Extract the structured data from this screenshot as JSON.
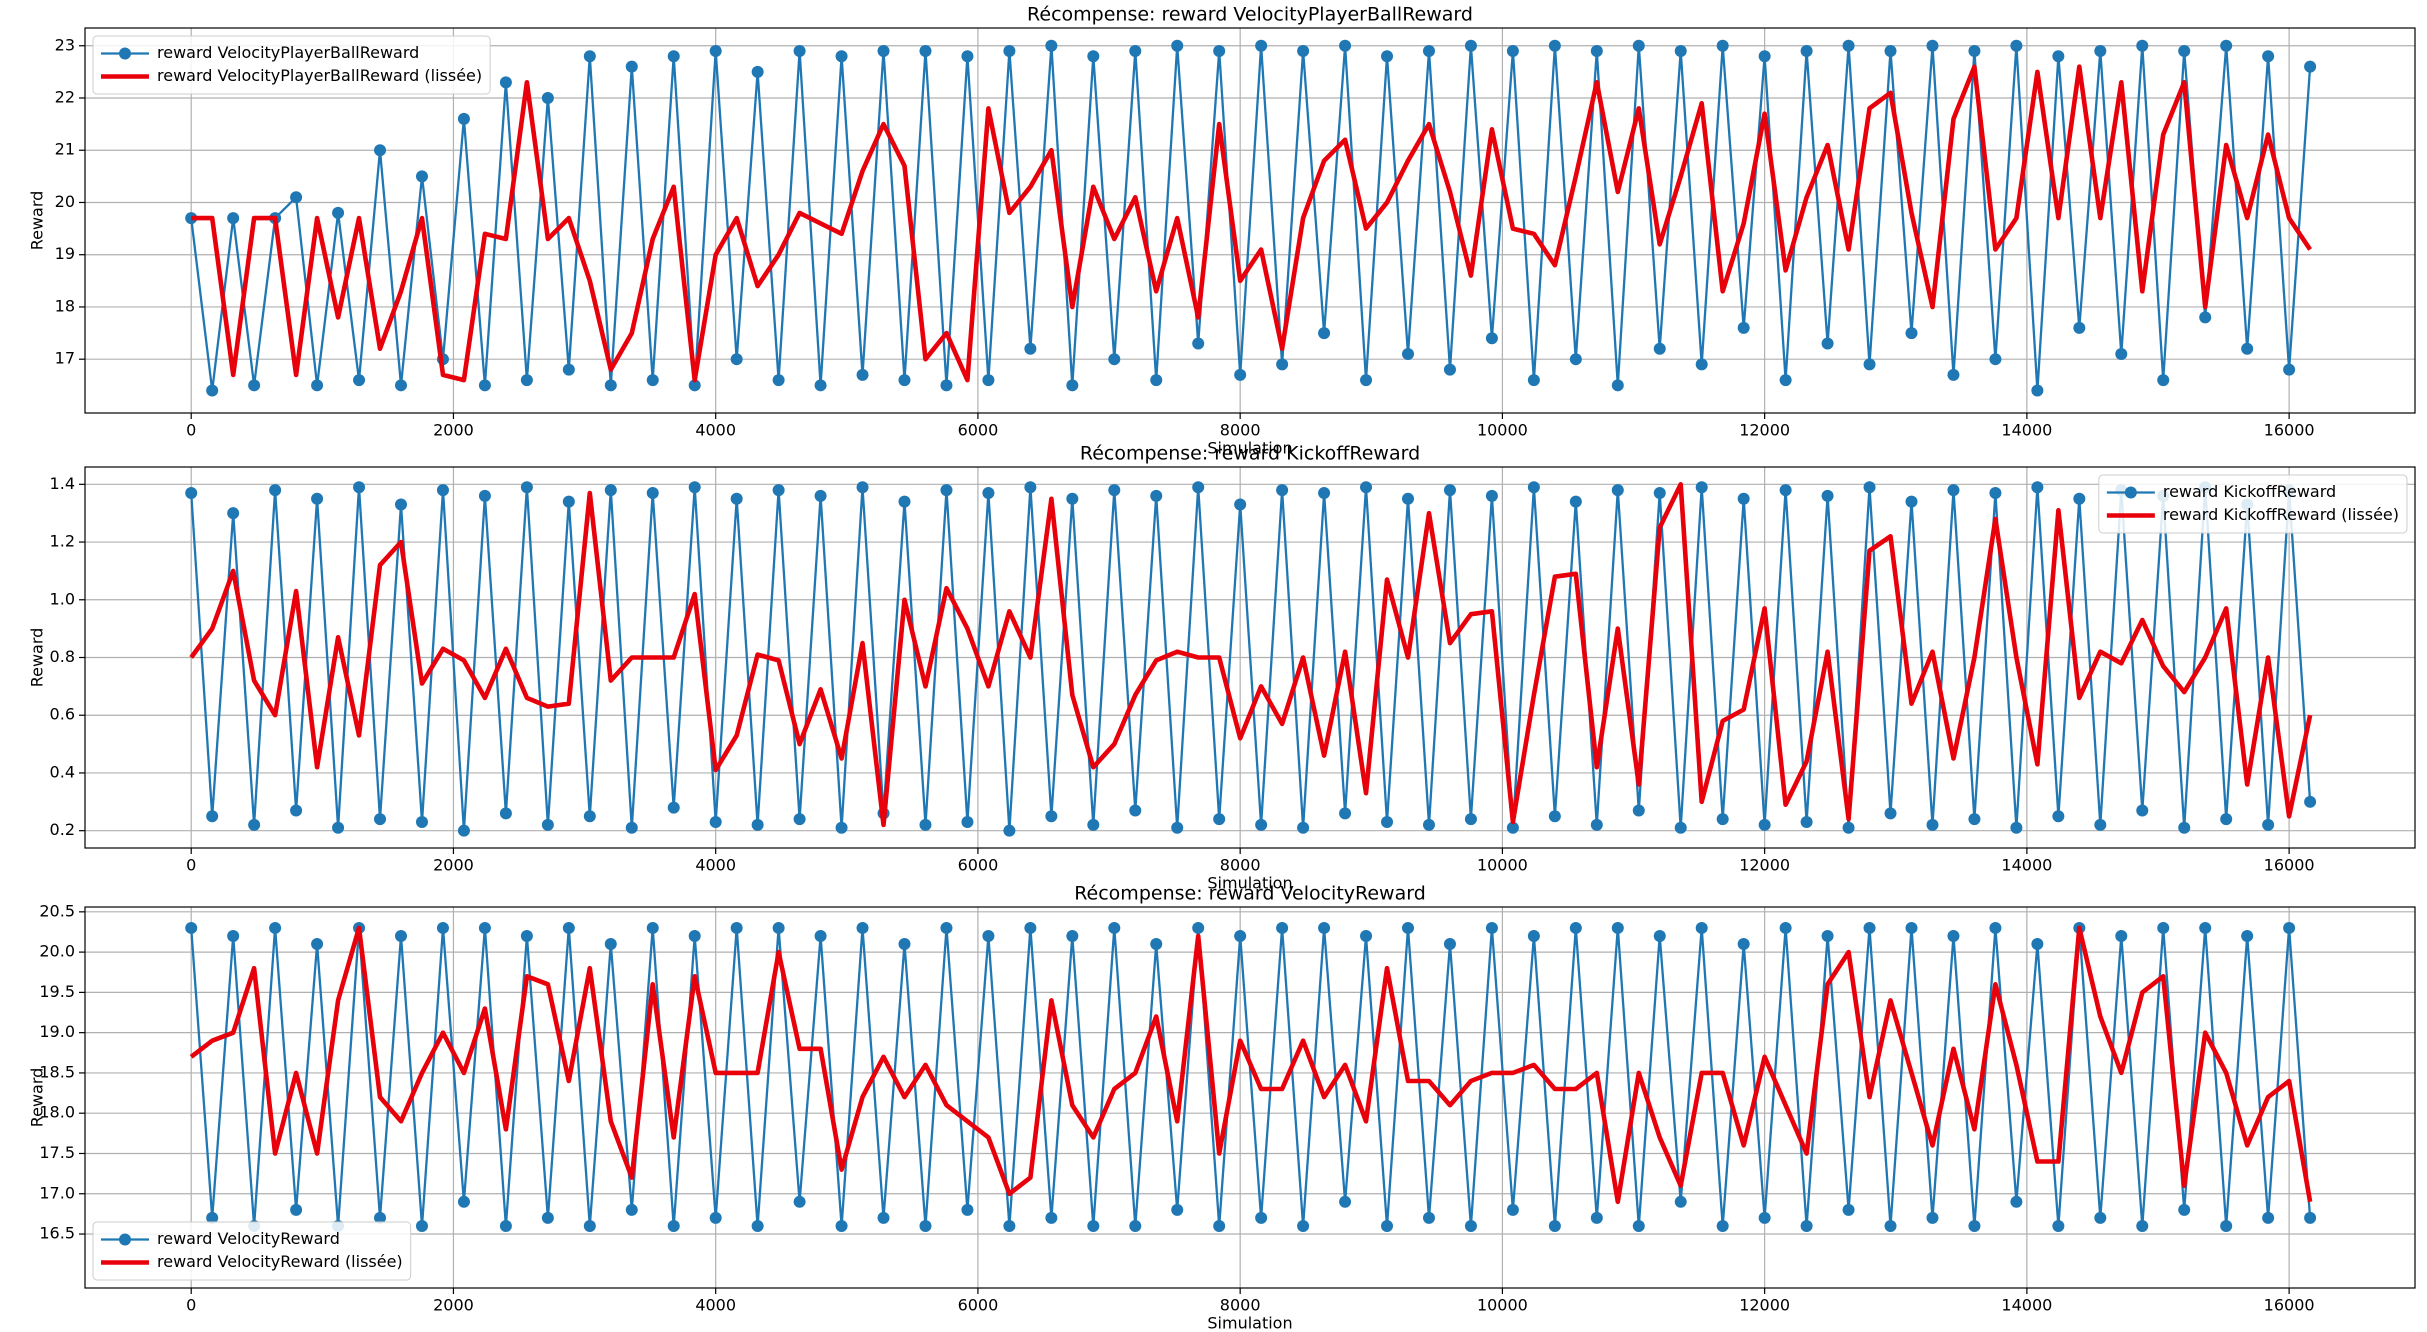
{
  "chart_data": [
    {
      "type": "line",
      "title": "Récompense: reward VelocityPlayerBallReward",
      "xlabel": "Simulation",
      "ylabel": "Reward",
      "xlim": [
        -810,
        16960
      ],
      "xticks": [
        0,
        2000,
        4000,
        6000,
        8000,
        10000,
        12000,
        14000,
        16000
      ],
      "ylim": [
        15.97,
        23.34
      ],
      "yticks": [
        17,
        18,
        19,
        20,
        21,
        22,
        23
      ],
      "grid": true,
      "legend": "upper left",
      "x": [
        0,
        160,
        320,
        480,
        640,
        800,
        960,
        1120,
        1280,
        1440,
        1600,
        1760,
        1920,
        2080,
        2240,
        2400,
        2560,
        2720,
        2880,
        3040,
        3200,
        3360,
        3520,
        3680,
        3840,
        4000,
        4160,
        4320,
        4480,
        4640,
        4800,
        4960,
        5120,
        5280,
        5440,
        5600,
        5760,
        5920,
        6080,
        6240,
        6400,
        6560,
        6720,
        6880,
        7040,
        7200,
        7360,
        7520,
        7680,
        7840,
        8000,
        8160,
        8320,
        8480,
        8640,
        8800,
        8960,
        9120,
        9280,
        9440,
        9600,
        9760,
        9920,
        10080,
        10240,
        10400,
        10560,
        10720,
        10880,
        11040,
        11200,
        11360,
        11520,
        11680,
        11840,
        12000,
        12160,
        12320,
        12480,
        12640,
        12800,
        12960,
        13120,
        13280,
        13440,
        13600,
        13760,
        13920,
        14080,
        14240,
        14400,
        14560,
        14720,
        14880,
        15040,
        15200,
        15360,
        15520,
        15680,
        15840,
        16000,
        16160
      ],
      "series": [
        {
          "name": "reward VelocityPlayerBallReward",
          "color": "#1f77b4",
          "marker": "o",
          "values": [
            19.7,
            16.4,
            19.7,
            16.5,
            19.7,
            20.1,
            16.5,
            19.8,
            16.6,
            21.0,
            16.5,
            20.5,
            17.0,
            21.6,
            16.5,
            22.3,
            16.6,
            22.0,
            16.8,
            22.8,
            16.5,
            22.6,
            16.6,
            22.8,
            16.5,
            22.9,
            17.0,
            22.5,
            16.6,
            22.9,
            16.5,
            22.8,
            16.7,
            22.9,
            16.6,
            22.9,
            16.5,
            22.8,
            16.6,
            22.9,
            17.2,
            23.0,
            16.5,
            22.8,
            17.0,
            22.9,
            16.6,
            23.0,
            17.3,
            22.9,
            16.7,
            23.0,
            16.9,
            22.9,
            17.5,
            23.0,
            16.6,
            22.8,
            17.1,
            22.9,
            16.8,
            23.0,
            17.4,
            22.9,
            16.6,
            23.0,
            17.0,
            22.9,
            16.5,
            23.0,
            17.2,
            22.9,
            16.9,
            23.0,
            17.6,
            22.8,
            16.6,
            22.9,
            17.3,
            23.0,
            16.9,
            22.9,
            17.5,
            23.0,
            16.7,
            22.9,
            17.0,
            23.0,
            16.4,
            22.8,
            17.6,
            22.9,
            17.1,
            23.0,
            16.6,
            22.9,
            17.8,
            23.0,
            17.2,
            22.8,
            16.8,
            22.6
          ]
        },
        {
          "name": "reward VelocityPlayerBallReward (lissée)",
          "color": "#e8000b",
          "values": [
            19.7,
            19.7,
            16.7,
            19.7,
            19.7,
            16.7,
            19.7,
            17.8,
            19.7,
            17.2,
            18.3,
            19.7,
            16.7,
            16.6,
            19.4,
            19.3,
            22.3,
            19.3,
            19.7,
            18.5,
            16.8,
            17.5,
            19.3,
            20.3,
            16.6,
            19.0,
            19.7,
            18.4,
            19.0,
            19.8,
            19.6,
            19.4,
            20.6,
            21.5,
            20.7,
            17.0,
            17.5,
            16.6,
            21.8,
            19.8,
            20.3,
            21.0,
            18.0,
            20.3,
            19.3,
            20.1,
            18.3,
            19.7,
            17.8,
            21.5,
            18.5,
            19.1,
            17.2,
            19.7,
            20.8,
            21.2,
            19.5,
            20.0,
            20.8,
            21.5,
            20.2,
            18.6,
            21.4,
            19.5,
            19.4,
            18.8,
            20.5,
            22.3,
            20.2,
            21.8,
            19.2,
            20.5,
            21.9,
            18.3,
            19.6,
            21.7,
            18.7,
            20.1,
            21.1,
            19.1,
            21.8,
            22.1,
            19.8,
            18.0,
            21.6,
            22.6,
            19.1,
            19.7,
            22.5,
            19.7,
            22.6,
            19.7,
            22.3,
            18.3,
            21.3,
            22.3,
            18.0,
            21.1,
            19.7,
            21.3,
            19.7,
            19.1
          ]
        }
      ]
    },
    {
      "type": "line",
      "title": "Récompense: reward KickoffReward",
      "xlabel": "Simulation",
      "ylabel": "Reward",
      "xlim": [
        -810,
        16960
      ],
      "xticks": [
        0,
        2000,
        4000,
        6000,
        8000,
        10000,
        12000,
        14000,
        16000
      ],
      "ylim": [
        0.14,
        1.46
      ],
      "yticks": [
        0.2,
        0.4,
        0.6,
        0.8,
        {
          "value": 1,
          "label": "1.0"
        },
        1.2,
        1.4
      ],
      "grid": true,
      "legend": "upper right",
      "x": [
        0,
        160,
        320,
        480,
        640,
        800,
        960,
        1120,
        1280,
        1440,
        1600,
        1760,
        1920,
        2080,
        2240,
        2400,
        2560,
        2720,
        2880,
        3040,
        3200,
        3360,
        3520,
        3680,
        3840,
        4000,
        4160,
        4320,
        4480,
        4640,
        4800,
        4960,
        5120,
        5280,
        5440,
        5600,
        5760,
        5920,
        6080,
        6240,
        6400,
        6560,
        6720,
        6880,
        7040,
        7200,
        7360,
        7520,
        7680,
        7840,
        8000,
        8160,
        8320,
        8480,
        8640,
        8800,
        8960,
        9120,
        9280,
        9440,
        9600,
        9760,
        9920,
        10080,
        10240,
        10400,
        10560,
        10720,
        10880,
        11040,
        11200,
        11360,
        11520,
        11680,
        11840,
        12000,
        12160,
        12320,
        12480,
        12640,
        12800,
        12960,
        13120,
        13280,
        13440,
        13600,
        13760,
        13920,
        14080,
        14240,
        14400,
        14560,
        14720,
        14880,
        15040,
        15200,
        15360,
        15520,
        15680,
        15840,
        16000,
        16160
      ],
      "series": [
        {
          "name": "reward KickoffReward",
          "color": "#1f77b4",
          "marker": "o",
          "values": [
            1.37,
            0.25,
            1.3,
            0.22,
            1.38,
            0.27,
            1.35,
            0.21,
            1.39,
            0.24,
            1.33,
            0.23,
            1.38,
            0.2,
            1.36,
            0.26,
            1.39,
            0.22,
            1.34,
            0.25,
            1.38,
            0.21,
            1.37,
            0.28,
            1.39,
            0.23,
            1.35,
            0.22,
            1.38,
            0.24,
            1.36,
            0.21,
            1.39,
            0.26,
            1.34,
            0.22,
            1.38,
            0.23,
            1.37,
            0.2,
            1.39,
            0.25,
            1.35,
            0.22,
            1.38,
            0.27,
            1.36,
            0.21,
            1.39,
            0.24,
            1.33,
            0.22,
            1.38,
            0.21,
            1.37,
            0.26,
            1.39,
            0.23,
            1.35,
            0.22,
            1.38,
            0.24,
            1.36,
            0.21,
            1.39,
            0.25,
            1.34,
            0.22,
            1.38,
            0.27,
            1.37,
            0.21,
            1.39,
            0.24,
            1.35,
            0.22,
            1.38,
            0.23,
            1.36,
            0.21,
            1.39,
            0.26,
            1.34,
            0.22,
            1.38,
            0.24,
            1.37,
            0.21,
            1.39,
            0.25,
            1.35,
            0.22,
            1.38,
            0.27,
            1.36,
            0.21,
            1.39,
            0.24,
            1.33,
            0.22,
            1.38,
            0.3
          ]
        },
        {
          "name": "reward KickoffReward (lissée)",
          "color": "#e8000b",
          "values": [
            0.8,
            0.9,
            1.1,
            0.72,
            0.6,
            1.03,
            0.42,
            0.87,
            0.53,
            1.12,
            1.2,
            0.71,
            0.83,
            0.79,
            0.66,
            0.83,
            0.66,
            0.63,
            0.64,
            1.37,
            0.72,
            0.8,
            0.8,
            0.8,
            1.02,
            0.41,
            0.53,
            0.81,
            0.79,
            0.5,
            0.69,
            0.45,
            0.85,
            0.22,
            1.0,
            0.7,
            1.04,
            0.9,
            0.7,
            0.96,
            0.8,
            1.35,
            0.67,
            0.42,
            0.5,
            0.67,
            0.79,
            0.82,
            0.8,
            0.8,
            0.52,
            0.7,
            0.57,
            0.8,
            0.46,
            0.82,
            0.33,
            1.07,
            0.8,
            1.3,
            0.85,
            0.95,
            0.96,
            0.23,
            0.67,
            1.08,
            1.09,
            0.42,
            0.9,
            0.36,
            1.25,
            1.4,
            0.3,
            0.58,
            0.62,
            0.97,
            0.29,
            0.44,
            0.82,
            0.24,
            1.17,
            1.22,
            0.64,
            0.82,
            0.45,
            0.8,
            1.28,
            0.8,
            0.43,
            1.31,
            0.66,
            0.82,
            0.78,
            0.93,
            0.77,
            0.68,
            0.8,
            0.97,
            0.36,
            0.8,
            0.25,
            0.6
          ]
        }
      ]
    },
    {
      "type": "line",
      "title": "Récompense: reward VelocityReward",
      "xlabel": "Simulation",
      "ylabel": "Reward",
      "xlim": [
        -810,
        16960
      ],
      "xticks": [
        0,
        2000,
        4000,
        6000,
        8000,
        10000,
        12000,
        14000,
        16000
      ],
      "ylim": [
        15.83,
        20.56
      ],
      "yticks": [
        16.5,
        {
          "value": 17,
          "label": "17.0"
        },
        17.5,
        {
          "value": 18,
          "label": "18.0"
        },
        18.5,
        {
          "value": 19,
          "label": "19.0"
        },
        19.5,
        {
          "value": 20,
          "label": "20.0"
        },
        20.5
      ],
      "grid": true,
      "legend": "lower left",
      "x": [
        0,
        160,
        320,
        480,
        640,
        800,
        960,
        1120,
        1280,
        1440,
        1600,
        1760,
        1920,
        2080,
        2240,
        2400,
        2560,
        2720,
        2880,
        3040,
        3200,
        3360,
        3520,
        3680,
        3840,
        4000,
        4160,
        4320,
        4480,
        4640,
        4800,
        4960,
        5120,
        5280,
        5440,
        5600,
        5760,
        5920,
        6080,
        6240,
        6400,
        6560,
        6720,
        6880,
        7040,
        7200,
        7360,
        7520,
        7680,
        7840,
        8000,
        8160,
        8320,
        8480,
        8640,
        8800,
        8960,
        9120,
        9280,
        9440,
        9600,
        9760,
        9920,
        10080,
        10240,
        10400,
        10560,
        10720,
        10880,
        11040,
        11200,
        11360,
        11520,
        11680,
        11840,
        12000,
        12160,
        12320,
        12480,
        12640,
        12800,
        12960,
        13120,
        13280,
        13440,
        13600,
        13760,
        13920,
        14080,
        14240,
        14400,
        14560,
        14720,
        14880,
        15040,
        15200,
        15360,
        15520,
        15680,
        15840,
        16000,
        16160
      ],
      "series": [
        {
          "name": "reward VelocityReward",
          "color": "#1f77b4",
          "marker": "o",
          "values": [
            20.3,
            16.7,
            20.2,
            16.6,
            20.3,
            16.8,
            20.1,
            16.6,
            20.3,
            16.7,
            20.2,
            16.6,
            20.3,
            16.9,
            20.3,
            16.6,
            20.2,
            16.7,
            20.3,
            16.6,
            20.1,
            16.8,
            20.3,
            16.6,
            20.2,
            16.7,
            20.3,
            16.6,
            20.3,
            16.9,
            20.2,
            16.6,
            20.3,
            16.7,
            20.1,
            16.6,
            20.3,
            16.8,
            20.2,
            16.6,
            20.3,
            16.7,
            20.2,
            16.6,
            20.3,
            16.6,
            20.1,
            16.8,
            20.3,
            16.6,
            20.2,
            16.7,
            20.3,
            16.6,
            20.3,
            16.9,
            20.2,
            16.6,
            20.3,
            16.7,
            20.1,
            16.6,
            20.3,
            16.8,
            20.2,
            16.6,
            20.3,
            16.7,
            20.3,
            16.6,
            20.2,
            16.9,
            20.3,
            16.6,
            20.1,
            16.7,
            20.3,
            16.6,
            20.2,
            16.8,
            20.3,
            16.6,
            20.3,
            16.7,
            20.2,
            16.6,
            20.3,
            16.9,
            20.1,
            16.6,
            20.3,
            16.7,
            20.2,
            16.6,
            20.3,
            16.8,
            20.3,
            16.6,
            20.2,
            16.7,
            20.3,
            16.7
          ]
        },
        {
          "name": "reward VelocityReward (lissée)",
          "color": "#e8000b",
          "values": [
            18.7,
            18.9,
            19.0,
            19.8,
            17.5,
            18.5,
            17.5,
            19.4,
            20.3,
            18.2,
            17.9,
            18.5,
            19.0,
            18.5,
            19.3,
            17.8,
            19.7,
            19.6,
            18.4,
            19.8,
            17.9,
            17.2,
            19.6,
            17.7,
            19.7,
            18.5,
            18.5,
            18.5,
            20.0,
            18.8,
            18.8,
            17.3,
            18.2,
            18.7,
            18.2,
            18.6,
            18.1,
            17.9,
            17.7,
            17.0,
            17.2,
            19.4,
            18.1,
            17.7,
            18.3,
            18.5,
            19.2,
            17.9,
            20.2,
            17.5,
            18.9,
            18.3,
            18.3,
            18.9,
            18.2,
            18.6,
            17.9,
            19.8,
            18.4,
            18.4,
            18.1,
            18.4,
            18.5,
            18.5,
            18.6,
            18.3,
            18.3,
            18.5,
            16.9,
            18.5,
            17.7,
            17.1,
            18.5,
            18.5,
            17.6,
            18.7,
            18.1,
            17.5,
            19.6,
            20.0,
            18.2,
            19.4,
            18.5,
            17.6,
            18.8,
            17.8,
            19.6,
            18.6,
            17.4,
            17.4,
            20.3,
            19.2,
            18.5,
            19.5,
            19.7,
            17.1,
            19.0,
            18.5,
            17.6,
            18.2,
            18.4,
            16.9
          ]
        }
      ]
    }
  ]
}
